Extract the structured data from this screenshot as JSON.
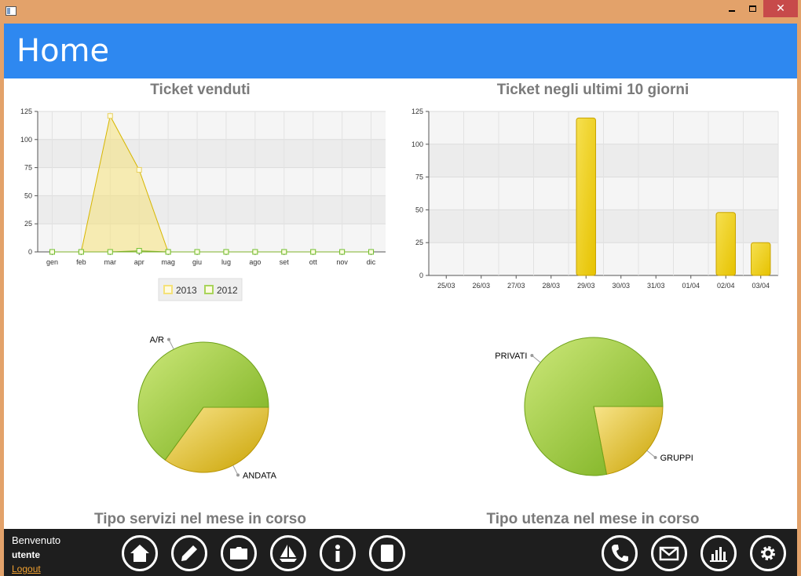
{
  "page": {
    "title": "Home"
  },
  "charts": {
    "area": {
      "title": "Ticket venduti"
    },
    "bar": {
      "title": "Ticket negli ultimi 10 giorni"
    },
    "pie1": {
      "title": "Tipo servizi nel mese in corso"
    },
    "pie2": {
      "title": "Tipo utenza nel mese in corso"
    }
  },
  "chart_data": [
    {
      "type": "area",
      "title": "Ticket venduti",
      "categories": [
        "gen",
        "feb",
        "mar",
        "apr",
        "mag",
        "giu",
        "lug",
        "ago",
        "set",
        "ott",
        "nov",
        "dic"
      ],
      "series": [
        {
          "name": "2013",
          "color": "#f5e27a",
          "values": [
            0,
            0,
            121,
            73,
            0,
            0,
            0,
            0,
            0,
            0,
            0,
            0
          ]
        },
        {
          "name": "2012",
          "color": "#a8d45a",
          "values": [
            0,
            0,
            0,
            1,
            0,
            0,
            0,
            0,
            0,
            0,
            0,
            0
          ]
        }
      ],
      "ylim": [
        0,
        125
      ],
      "yticks": [
        0,
        25,
        50,
        75,
        100,
        125
      ],
      "legend": "bottom",
      "grid": true
    },
    {
      "type": "bar",
      "title": "Ticket negli ultimi 10 giorni",
      "categories": [
        "25/03",
        "26/03",
        "27/03",
        "28/03",
        "29/03",
        "30/03",
        "31/03",
        "01/04",
        "02/04",
        "03/04"
      ],
      "values": [
        0,
        0,
        0,
        0,
        120,
        0,
        0,
        0,
        48,
        25
      ],
      "ylim": [
        0,
        125
      ],
      "yticks": [
        0,
        25,
        50,
        75,
        100,
        125
      ],
      "grid": true
    },
    {
      "type": "pie",
      "title": "Tipo servizi nel mese in corso",
      "slices": [
        {
          "label": "ANDATA",
          "value": 35,
          "color": "#e0b818"
        },
        {
          "label": "A/R",
          "value": 65,
          "color": "#8cc230"
        }
      ]
    },
    {
      "type": "pie",
      "title": "Tipo utenza nel mese in corso",
      "slices": [
        {
          "label": "GRUPPI",
          "value": 22,
          "color": "#e0b818"
        },
        {
          "label": "PRIVATI",
          "value": 78,
          "color": "#8cc230"
        }
      ]
    }
  ],
  "footer": {
    "welcome": "Benvenuto",
    "user": "utente",
    "logout": "Logout",
    "left_icons": [
      "home-icon",
      "edit-icon",
      "folder-icon",
      "boat-icon",
      "info-icon",
      "document-icon"
    ],
    "right_icons": [
      "phone-icon",
      "mail-icon",
      "stats-icon",
      "settings-icon"
    ]
  }
}
